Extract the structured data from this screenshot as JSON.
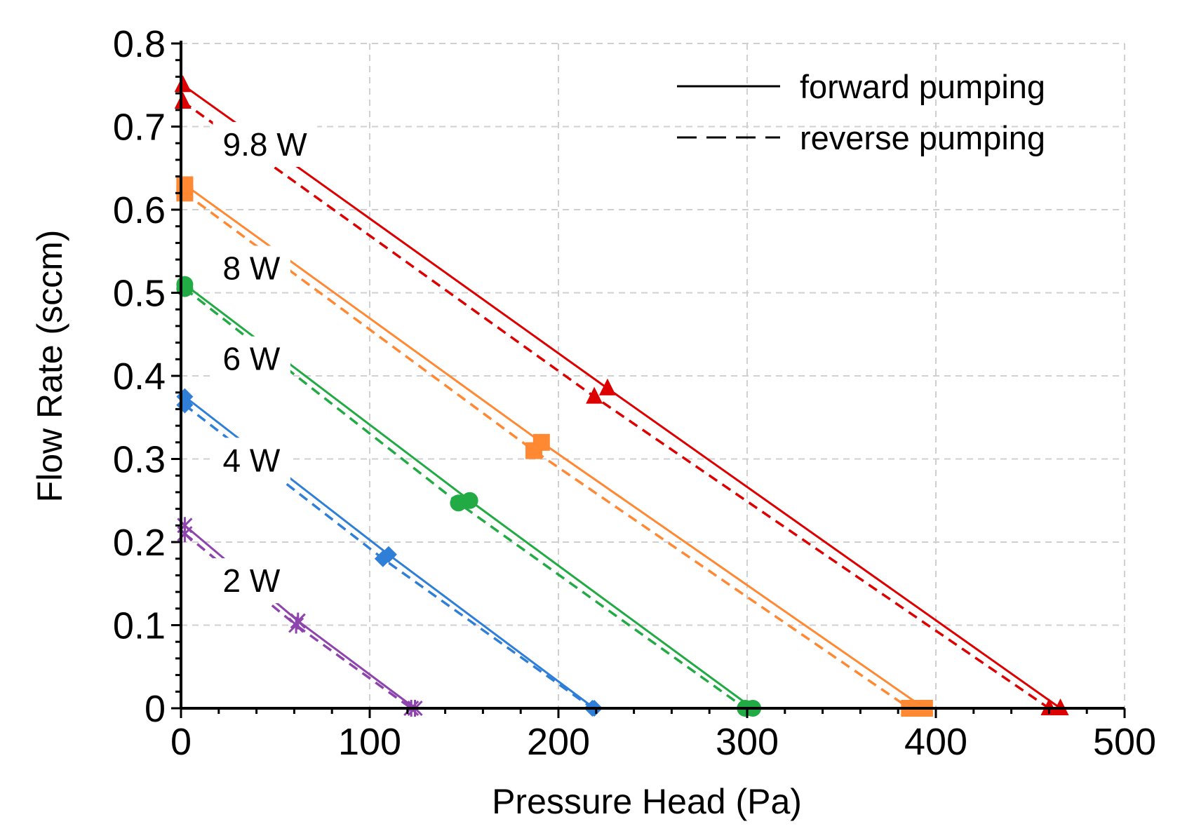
{
  "chart_data": {
    "type": "line",
    "title": "",
    "xlabel": "Pressure Head (Pa)",
    "ylabel": "Flow Rate (sccm)",
    "xlim": [
      0,
      500
    ],
    "ylim": [
      0,
      0.8
    ],
    "xticks": [
      0,
      100,
      200,
      300,
      400,
      500
    ],
    "xtick_labels": [
      "0",
      "100",
      "200",
      "300",
      "400",
      "500"
    ],
    "yticks": [
      0,
      0.1,
      0.2,
      0.3,
      0.4,
      0.5,
      0.6,
      0.7,
      0.8
    ],
    "ytick_labels": [
      "0",
      "0.1",
      "0.2",
      "0.3",
      "0.4",
      "0.5",
      "0.6",
      "0.7",
      "0.8"
    ],
    "grid": true,
    "legend": {
      "position": "top-right",
      "entries": [
        {
          "label": "forward pumping",
          "style": "solid"
        },
        {
          "label": "reverse pumping",
          "style": "dashed"
        }
      ]
    },
    "series": [
      {
        "name": "9.8 W",
        "color": "#dd0000",
        "marker": "triangle",
        "forward": {
          "x": [
            1,
            226,
            466
          ],
          "y": [
            0.75,
            0.385,
            0.0
          ]
        },
        "reverse": {
          "x": [
            1,
            219,
            460
          ],
          "y": [
            0.73,
            0.375,
            0.0
          ]
        }
      },
      {
        "name": "8 W",
        "color": "#ff8833",
        "marker": "square",
        "forward": {
          "x": [
            2,
            191,
            394
          ],
          "y": [
            0.63,
            0.32,
            0.0
          ]
        },
        "reverse": {
          "x": [
            2,
            187,
            386
          ],
          "y": [
            0.62,
            0.31,
            0.0
          ]
        }
      },
      {
        "name": "6 W",
        "color": "#22aa44",
        "marker": "circle",
        "forward": {
          "x": [
            2,
            153,
            303
          ],
          "y": [
            0.51,
            0.25,
            0.0
          ]
        },
        "reverse": {
          "x": [
            2,
            147,
            299
          ],
          "y": [
            0.505,
            0.247,
            0.0
          ]
        }
      },
      {
        "name": "4 W",
        "color": "#2f7ed8",
        "marker": "diamond",
        "forward": {
          "x": [
            2,
            110,
            219
          ],
          "y": [
            0.375,
            0.185,
            0.0
          ]
        },
        "reverse": {
          "x": [
            2,
            107,
            218
          ],
          "y": [
            0.365,
            0.18,
            0.0
          ]
        }
      },
      {
        "name": "2 W",
        "color": "#8e44ad",
        "marker": "x",
        "forward": {
          "x": [
            2,
            62,
            124
          ],
          "y": [
            0.22,
            0.105,
            0.0
          ]
        },
        "reverse": {
          "x": [
            2,
            61,
            122
          ],
          "y": [
            0.21,
            0.1,
            0.0
          ]
        }
      }
    ],
    "annotations": [
      {
        "text": "9.8 W",
        "series": "9.8 W",
        "x": 0.57,
        "y": 0.665
      },
      {
        "text": "8 W",
        "series": "8 W",
        "x": 0.57,
        "y": 0.516
      },
      {
        "text": "6 W",
        "series": "6 W",
        "x": 0.57,
        "y": 0.407
      },
      {
        "text": "4 W",
        "series": "4 W",
        "x": 0.57,
        "y": 0.285
      },
      {
        "text": "2 W",
        "series": "2 W",
        "x": 0.57,
        "y": 0.14
      }
    ]
  }
}
